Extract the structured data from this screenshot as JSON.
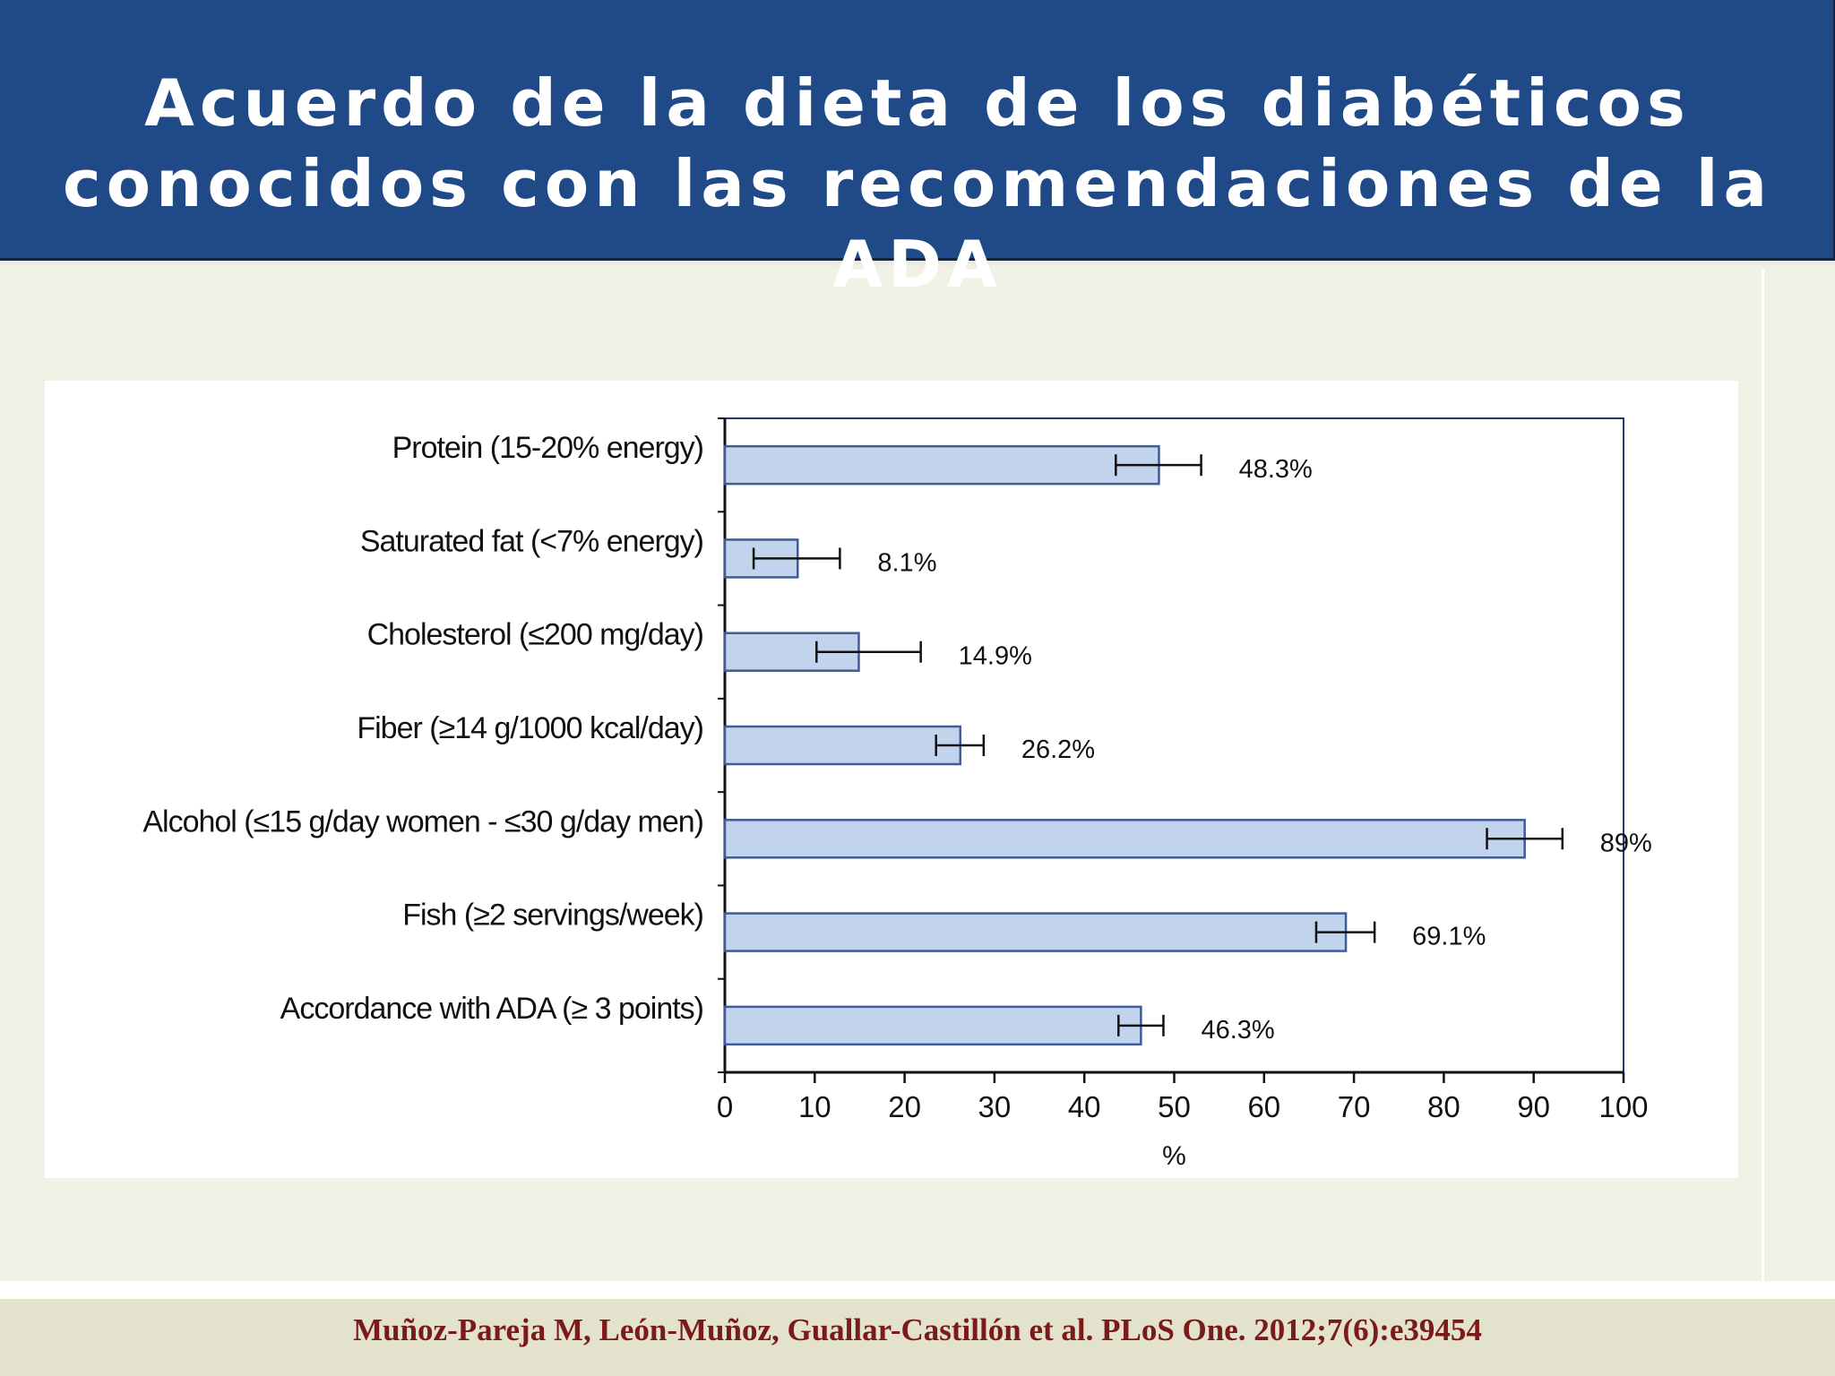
{
  "slide": {
    "title_lines": [
      "Acuerdo de la dieta de los diabéticos",
      "conocidos con las recomendaciones de la",
      "ADA"
    ],
    "citation": "Muñoz-Pareja M, León-Muñoz, Guallar-Castillón et al. PLoS One. 2012;7(6):e39454"
  },
  "colors": {
    "header_bg": "#1f4a87",
    "bar_fill": "#c2d3ee",
    "bar_stroke": "#3e5c96",
    "plot_frame": "#1e3a6e",
    "citation_text": "#7b1a1a"
  },
  "chart_data": {
    "type": "bar",
    "orientation": "horizontal",
    "categories": [
      "Protein (15-20% energy)",
      "Saturated fat (<7% energy)",
      "Cholesterol (≤200 mg/day)",
      "Fiber (≥14 g/1000 kcal/day)",
      "Alcohol (≤15 g/day women - ≤30 g/day men)",
      "Fish (≥2 servings/week)",
      "Accordance with ADA (≥ 3 points)"
    ],
    "values": [
      48.3,
      8.1,
      14.9,
      26.2,
      89,
      69.1,
      46.3
    ],
    "value_labels": [
      "48.3%",
      "8.1%",
      "14.9%",
      "26.2%",
      "89%",
      "69.1%",
      "46.3%"
    ],
    "error_bars": [
      [
        43.5,
        53.0
      ],
      [
        3.2,
        12.8
      ],
      [
        10.2,
        21.8
      ],
      [
        23.5,
        28.8
      ],
      [
        84.8,
        93.2
      ],
      [
        65.8,
        72.3
      ],
      [
        43.8,
        48.8
      ]
    ],
    "xlabel": "%",
    "ylabel": "",
    "xlim": [
      0,
      100
    ],
    "xticks": [
      0,
      10,
      20,
      30,
      40,
      50,
      60,
      70,
      80,
      90,
      100
    ],
    "grid": false,
    "legend": "none"
  }
}
